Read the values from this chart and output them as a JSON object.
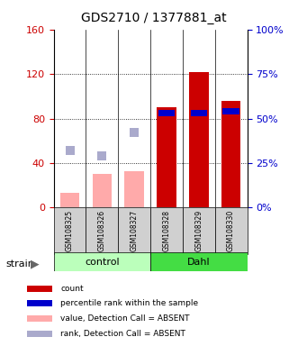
{
  "title": "GDS2710 / 1377881_at",
  "samples": [
    "GSM108325",
    "GSM108326",
    "GSM108327",
    "GSM108328",
    "GSM108329",
    "GSM108330"
  ],
  "count_values": [
    null,
    null,
    null,
    90,
    122,
    96
  ],
  "count_absent": [
    13,
    30,
    33,
    null,
    null,
    null
  ],
  "rank_values_pct": [
    null,
    null,
    null,
    53,
    53,
    54
  ],
  "rank_absent_pct": [
    32,
    29,
    42,
    null,
    null,
    null
  ],
  "ylim_left": [
    0,
    160
  ],
  "ylim_right": [
    0,
    100
  ],
  "yticks_left": [
    0,
    40,
    80,
    120,
    160
  ],
  "yticks_right": [
    0,
    25,
    50,
    75,
    100
  ],
  "ytick_labels_left": [
    "0",
    "40",
    "80",
    "120",
    "160"
  ],
  "ytick_labels_right": [
    "0%",
    "25%",
    "50%",
    "75%",
    "100%"
  ],
  "color_count": "#cc0000",
  "color_rank_blue": "#0000cc",
  "color_count_absent": "#ffaaaa",
  "color_rank_absent": "#aaaacc",
  "legend_items": [
    {
      "color": "#cc0000",
      "label": "count"
    },
    {
      "color": "#0000cc",
      "label": "percentile rank within the sample"
    },
    {
      "color": "#ffaaaa",
      "label": "value, Detection Call = ABSENT"
    },
    {
      "color": "#aaaacc",
      "label": "rank, Detection Call = ABSENT"
    }
  ],
  "left_axis_color": "#cc0000",
  "right_axis_color": "#0000cc",
  "control_color": "#bbffbb",
  "dahl_color": "#44dd44",
  "bar_width": 0.6
}
